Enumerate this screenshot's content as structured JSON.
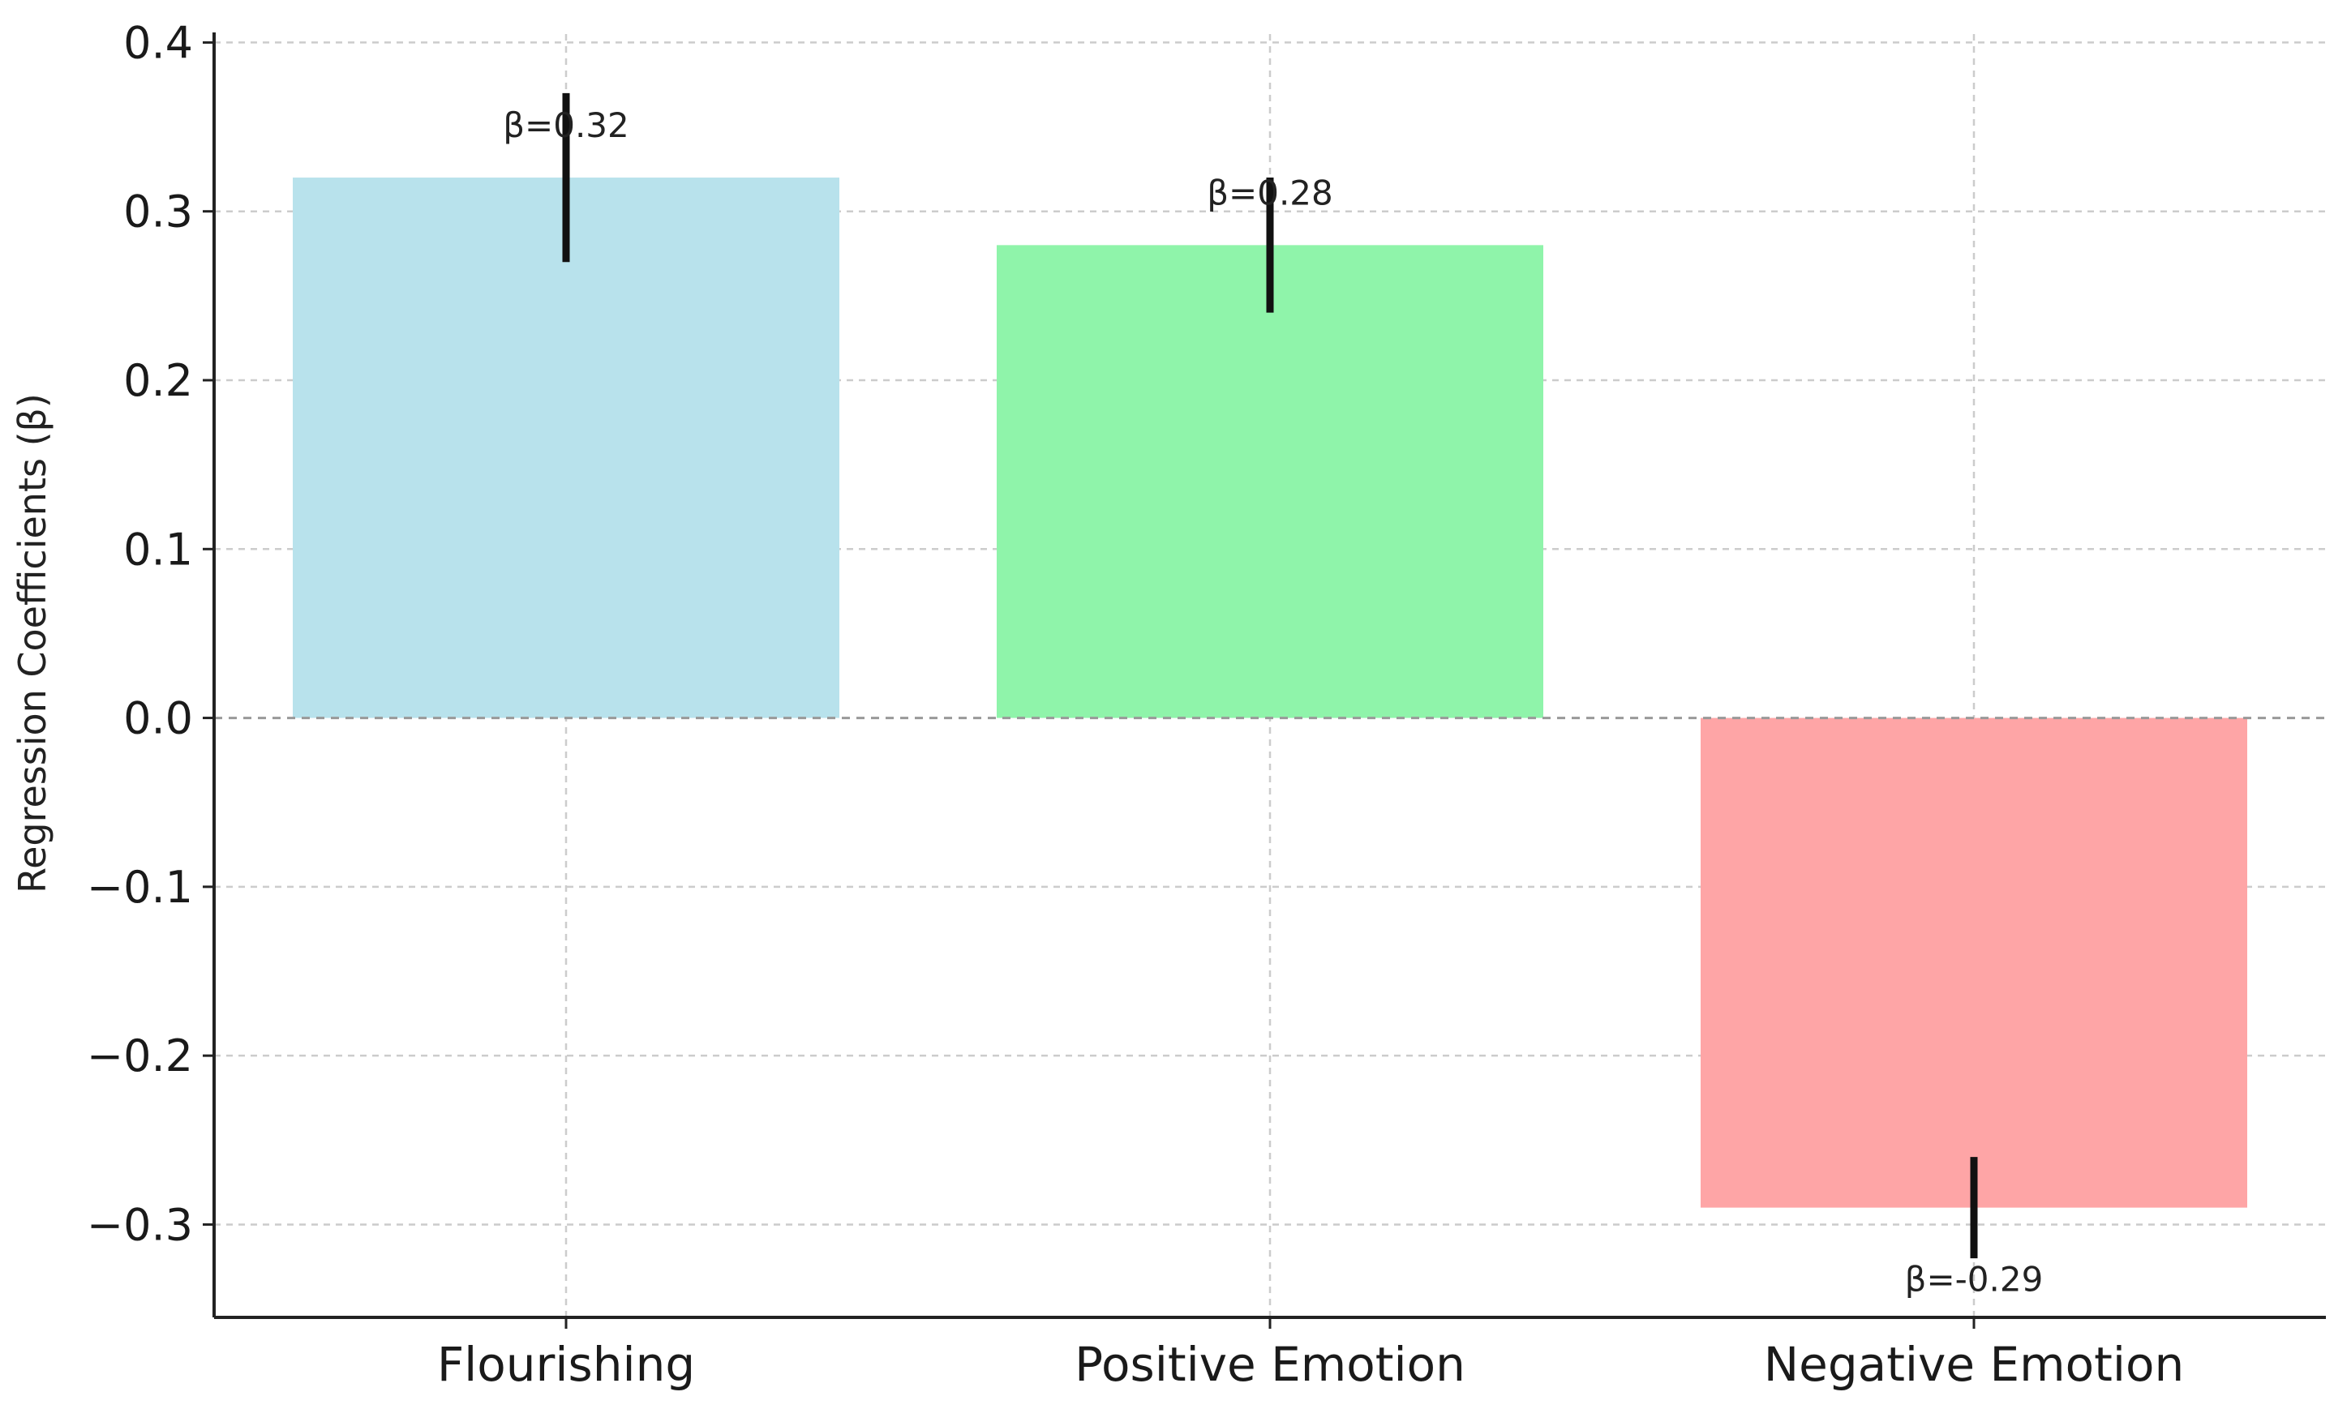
{
  "chart_data": {
    "type": "bar",
    "title": "",
    "xlabel": "",
    "ylabel": "Regression Coefficients (β)",
    "categories": [
      "Flourishing",
      "Positive Emotion",
      "Negative Emotion"
    ],
    "values": [
      0.32,
      0.28,
      -0.29
    ],
    "error_bars": [
      {
        "low": 0.27,
        "high": 0.37
      },
      {
        "low": 0.24,
        "high": 0.32
      },
      {
        "low": -0.32,
        "high": -0.26
      }
    ],
    "data_labels": [
      "β=0.32",
      "β=0.28",
      "β=-0.29"
    ],
    "colors": [
      "#b8e2ec",
      "#8ff4aa",
      "#fea5a6"
    ],
    "ylim": [
      -0.355,
      0.405
    ],
    "yticks": [
      0.4,
      0.3,
      0.2,
      0.1,
      0.0,
      -0.1,
      -0.2,
      -0.3
    ],
    "ytick_labels": [
      "0.4",
      "0.3",
      "0.2",
      "0.1",
      "0.0",
      "−0.1",
      "−0.2",
      "−0.3"
    ],
    "grid": true,
    "zero_line": true
  }
}
